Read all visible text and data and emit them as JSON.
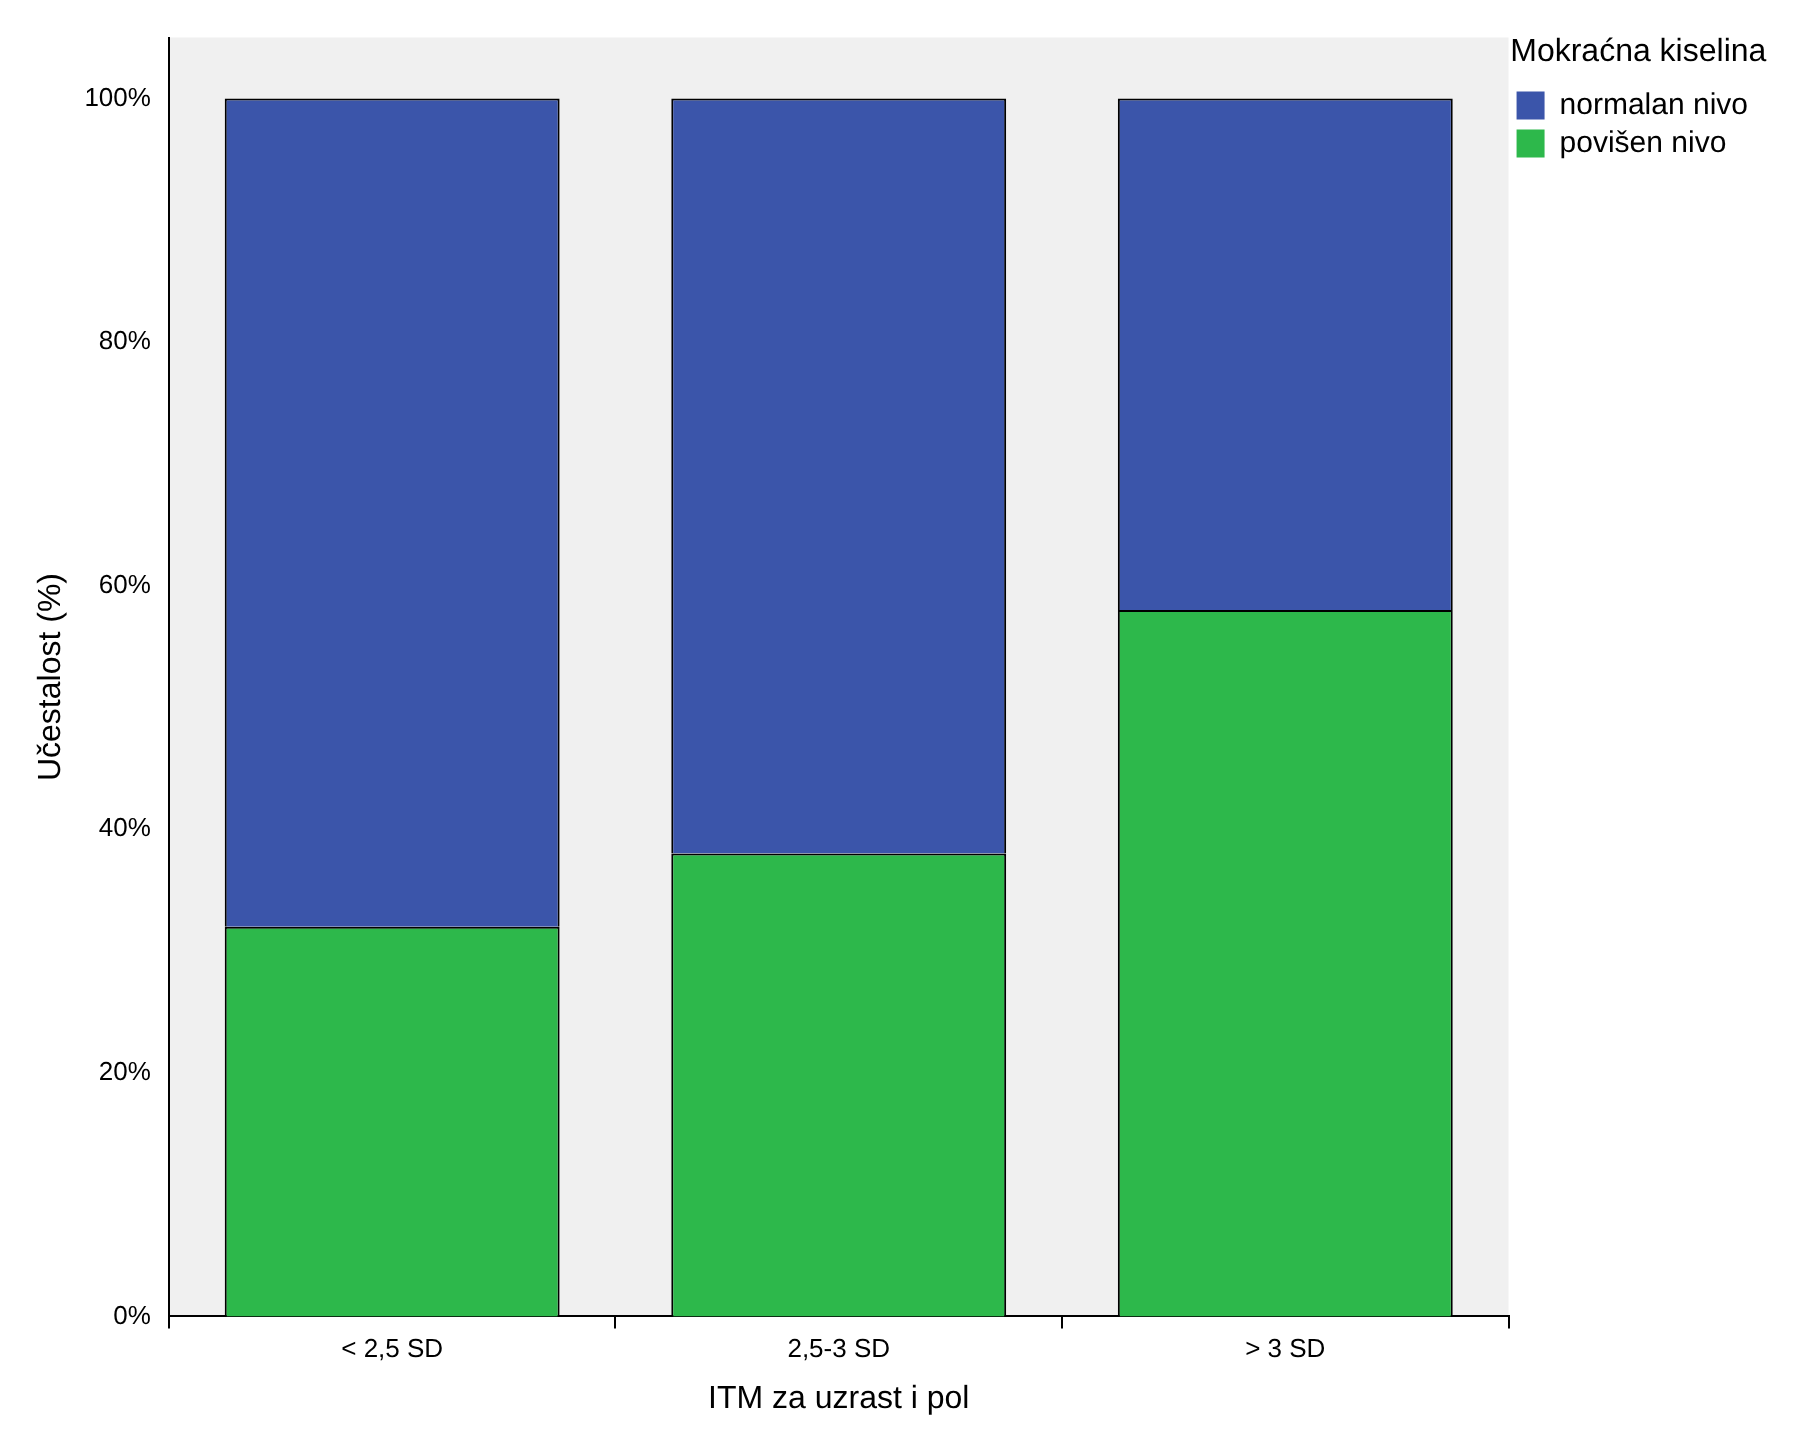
{
  "chart_data": {
    "type": "bar",
    "stacked": true,
    "xlabel": "ITM za uzrast i pol",
    "ylabel": "Učestalost (%)",
    "legend_title": "Mokraćna kiselina",
    "legend": "top right",
    "grid": false,
    "categories": [
      "< 2,5 SD",
      "2,5-3 SD",
      "> 3 SD"
    ],
    "series": [
      {
        "name": "povišen nivo",
        "color": "#2db84b",
        "values": [
          32,
          38,
          58
        ]
      },
      {
        "name": "normalan nivo",
        "color": "#3b55aa",
        "values": [
          68,
          62,
          42
        ]
      }
    ],
    "ylim": [
      0,
      105
    ],
    "yticks": [
      {
        "value": 0,
        "label": "0%"
      },
      {
        "value": 20,
        "label": "20%"
      },
      {
        "value": 40,
        "label": "40%"
      },
      {
        "value": 60,
        "label": "60%"
      },
      {
        "value": 80,
        "label": "80%"
      },
      {
        "value": 100,
        "label": "100%"
      }
    ]
  }
}
